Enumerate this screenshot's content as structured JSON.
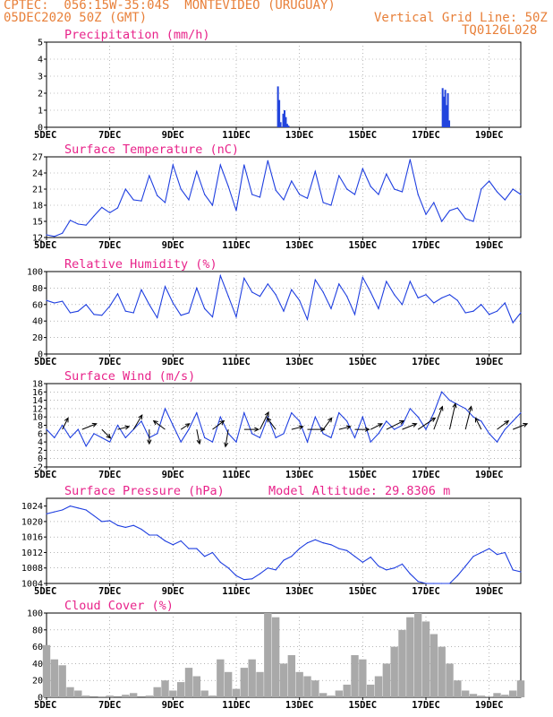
{
  "header": {
    "station": "CPTEC:  056:15W-35:04S  MONTEVIDEO (URUGUAY)",
    "run_date": "05DEC2020 50Z (GMT)",
    "grid_line": "Vertical Grid Line: 50Z",
    "code": "TQ0126L028"
  },
  "colors": {
    "line": "#1f3fe0",
    "bar": "#2244dd",
    "cloud": "#a9a9a9",
    "title": "#e8238a",
    "header": "#e8803a",
    "wind_arrow": "#000000"
  },
  "chart_data": [
    {
      "type": "bar",
      "title": "Precipitation (mm/h)",
      "ylim": [
        0,
        5
      ],
      "yticks": [
        0,
        1,
        2,
        3,
        4,
        5
      ],
      "xlim": [
        0,
        360
      ],
      "xtick_labels": [
        "5DEC",
        "7DEC",
        "9DEC",
        "11DEC",
        "13DEC",
        "15DEC",
        "17DEC",
        "19DEC"
      ],
      "x": [
        175,
        176,
        177,
        179,
        180,
        181,
        182,
        183,
        300,
        301,
        302,
        303,
        304,
        305
      ],
      "values": [
        2.4,
        1.6,
        0.3,
        0.8,
        1.0,
        0.6,
        0.2,
        0.1,
        2.3,
        1.8,
        2.2,
        1.3,
        2.0,
        0.4
      ]
    },
    {
      "type": "line",
      "title": "Surface Temperature (nC)",
      "ylim": [
        12,
        27
      ],
      "yticks": [
        12,
        15,
        18,
        21,
        24,
        27
      ],
      "xlim": [
        0,
        360
      ],
      "xtick_labels": [
        "5DEC",
        "7DEC",
        "9DEC",
        "11DEC",
        "13DEC",
        "15DEC",
        "17DEC",
        "19DEC"
      ],
      "x": [
        0,
        6,
        12,
        18,
        24,
        30,
        36,
        42,
        48,
        54,
        60,
        66,
        72,
        78,
        84,
        90,
        96,
        102,
        108,
        114,
        120,
        126,
        132,
        138,
        144,
        150,
        156,
        162,
        168,
        174,
        180,
        186,
        192,
        198,
        204,
        210,
        216,
        222,
        228,
        234,
        240,
        246,
        252,
        258,
        264,
        270,
        276,
        282,
        288,
        294,
        300,
        306,
        312,
        318,
        324,
        330,
        336,
        342,
        348,
        354,
        360
      ],
      "values": [
        12.5,
        12.2,
        12.8,
        15.2,
        14.5,
        14.3,
        16.0,
        17.6,
        16.6,
        17.5,
        21.0,
        19.0,
        18.8,
        23.5,
        19.8,
        18.5,
        25.5,
        21.0,
        19.0,
        24.3,
        20.0,
        18.0,
        25.5,
        21.5,
        17.0,
        25.5,
        20.0,
        19.5,
        26.3,
        20.8,
        19.0,
        22.5,
        20.0,
        19.3,
        24.3,
        18.5,
        18.0,
        23.5,
        21.0,
        20.0,
        24.8,
        21.5,
        20.0,
        23.8,
        21.0,
        20.5,
        26.5,
        20.0,
        16.3,
        18.5,
        15.0,
        17.0,
        17.5,
        15.5,
        15.0,
        21.0,
        22.5,
        20.5,
        19.0,
        21.0,
        20.0
      ]
    },
    {
      "type": "line",
      "title": "Relative Humidity (%)",
      "ylim": [
        0,
        100
      ],
      "yticks": [
        0,
        20,
        40,
        60,
        80,
        100
      ],
      "xlim": [
        0,
        360
      ],
      "xtick_labels": [
        "5DEC",
        "7DEC",
        "9DEC",
        "11DEC",
        "13DEC",
        "15DEC",
        "17DEC",
        "19DEC"
      ],
      "x": [
        0,
        6,
        12,
        18,
        24,
        30,
        36,
        42,
        48,
        54,
        60,
        66,
        72,
        78,
        84,
        90,
        96,
        102,
        108,
        114,
        120,
        126,
        132,
        138,
        144,
        150,
        156,
        162,
        168,
        174,
        180,
        186,
        192,
        198,
        204,
        210,
        216,
        222,
        228,
        234,
        240,
        246,
        252,
        258,
        264,
        270,
        276,
        282,
        288,
        294,
        300,
        306,
        312,
        318,
        324,
        330,
        336,
        342,
        348,
        354,
        360
      ],
      "values": [
        65,
        62,
        64,
        50,
        52,
        60,
        48,
        47,
        58,
        73,
        52,
        50,
        78,
        60,
        44,
        82,
        62,
        47,
        50,
        80,
        55,
        45,
        95,
        70,
        45,
        92,
        75,
        70,
        85,
        72,
        52,
        78,
        65,
        42,
        90,
        75,
        55,
        85,
        70,
        48,
        93,
        75,
        55,
        88,
        72,
        60,
        88,
        68,
        72,
        62,
        68,
        72,
        65,
        50,
        52,
        60,
        48,
        52,
        62,
        38,
        50
      ]
    },
    {
      "type": "line",
      "title": "Surface Wind (m/s)",
      "ylim": [
        -2,
        18
      ],
      "yticks": [
        -2,
        0,
        2,
        4,
        6,
        8,
        10,
        12,
        14,
        16,
        18
      ],
      "xlim": [
        0,
        360
      ],
      "xtick_labels": [
        "5DEC",
        "7DEC",
        "9DEC",
        "11DEC",
        "13DEC",
        "15DEC",
        "17DEC",
        "19DEC"
      ],
      "x": [
        0,
        6,
        12,
        18,
        24,
        30,
        36,
        42,
        48,
        54,
        60,
        66,
        72,
        78,
        84,
        90,
        96,
        102,
        108,
        114,
        120,
        126,
        132,
        138,
        144,
        150,
        156,
        162,
        168,
        174,
        180,
        186,
        192,
        198,
        204,
        210,
        216,
        222,
        228,
        234,
        240,
        246,
        252,
        258,
        264,
        270,
        276,
        282,
        288,
        294,
        300,
        306,
        312,
        318,
        324,
        330,
        336,
        342,
        348,
        354,
        360
      ],
      "values": [
        7,
        5,
        8,
        5,
        7,
        3,
        6,
        5,
        4,
        8,
        5,
        7,
        9,
        5,
        6,
        12,
        8,
        4,
        7,
        11,
        5,
        4,
        10,
        6,
        4,
        11,
        6,
        5,
        10,
        5,
        6,
        11,
        9,
        4,
        10,
        6,
        5,
        11,
        9,
        5,
        10,
        4,
        6,
        9,
        7,
        8,
        12,
        10,
        7,
        11,
        16,
        14,
        13,
        12,
        10,
        9,
        6,
        4,
        7,
        9,
        11
      ],
      "wind_vectors": [
        {
          "x": 12,
          "u": 2,
          "v": 4
        },
        {
          "x": 27,
          "u": 5,
          "v": 2
        },
        {
          "x": 42,
          "u": 3,
          "v": -3
        },
        {
          "x": 54,
          "u": 4,
          "v": 1
        },
        {
          "x": 66,
          "u": 3,
          "v": 5
        },
        {
          "x": 78,
          "u": 0,
          "v": -5
        },
        {
          "x": 90,
          "u": -4,
          "v": 3
        },
        {
          "x": 102,
          "u": 3,
          "v": 2
        },
        {
          "x": 114,
          "u": 1,
          "v": -5
        },
        {
          "x": 126,
          "u": 4,
          "v": 3
        },
        {
          "x": 138,
          "u": -1,
          "v": -6
        },
        {
          "x": 150,
          "u": 5,
          "v": 0
        },
        {
          "x": 162,
          "u": 3,
          "v": 6
        },
        {
          "x": 174,
          "u": -3,
          "v": 4
        },
        {
          "x": 186,
          "u": 4,
          "v": 1
        },
        {
          "x": 198,
          "u": 6,
          "v": 0
        },
        {
          "x": 210,
          "u": 3,
          "v": 4
        },
        {
          "x": 222,
          "u": 4,
          "v": 1
        },
        {
          "x": 234,
          "u": 5,
          "v": 0
        },
        {
          "x": 246,
          "u": 4,
          "v": 2
        },
        {
          "x": 258,
          "u": 6,
          "v": 3
        },
        {
          "x": 270,
          "u": 5,
          "v": 2
        },
        {
          "x": 282,
          "u": 6,
          "v": 4
        },
        {
          "x": 294,
          "u": 3,
          "v": 8
        },
        {
          "x": 306,
          "u": 2,
          "v": 9
        },
        {
          "x": 318,
          "u": 2,
          "v": 8
        },
        {
          "x": 330,
          "u": -2,
          "v": 4
        },
        {
          "x": 342,
          "u": 4,
          "v": 3
        },
        {
          "x": 354,
          "u": 5,
          "v": 2
        }
      ]
    },
    {
      "type": "line",
      "title": "Surface Pressure (hPa)",
      "annotation": "Model Altitude: 29.8306 m",
      "ylim": [
        1004,
        1026
      ],
      "yticks": [
        1004,
        1008,
        1012,
        1016,
        1020,
        1024
      ],
      "xlim": [
        0,
        360
      ],
      "xtick_labels": [
        "5DEC",
        "7DEC",
        "9DEC",
        "11DEC",
        "13DEC",
        "15DEC",
        "17DEC",
        "19DEC"
      ],
      "x": [
        0,
        6,
        12,
        18,
        24,
        30,
        36,
        42,
        48,
        54,
        60,
        66,
        72,
        78,
        84,
        90,
        96,
        102,
        108,
        114,
        120,
        126,
        132,
        138,
        144,
        150,
        156,
        162,
        168,
        174,
        180,
        186,
        192,
        198,
        204,
        210,
        216,
        222,
        228,
        234,
        240,
        246,
        252,
        258,
        264,
        270,
        276,
        282,
        288,
        294,
        300,
        306,
        312,
        318,
        324,
        330,
        336,
        342,
        348,
        354,
        360
      ],
      "values": [
        1022,
        1022.5,
        1023,
        1024,
        1023.5,
        1023,
        1021.5,
        1020,
        1020.2,
        1019,
        1018.5,
        1019,
        1018,
        1016.5,
        1016.5,
        1015,
        1014,
        1015,
        1013,
        1013,
        1011,
        1012,
        1009.5,
        1008,
        1006,
        1005,
        1005.2,
        1006.5,
        1008,
        1007.5,
        1010,
        1011,
        1013,
        1014.5,
        1015.3,
        1014.5,
        1014,
        1013,
        1012.5,
        1011,
        1009.5,
        1010.8,
        1008.5,
        1007.5,
        1008,
        1009,
        1006.5,
        1004.5,
        1003,
        1002.5,
        1003,
        1004,
        1006,
        1008.5,
        1011,
        1012,
        1013,
        1011.5,
        1012,
        1007.5,
        1007
      ]
    },
    {
      "type": "bar",
      "title": "Cloud Cover (%)",
      "ylim": [
        0,
        100
      ],
      "yticks": [
        0,
        20,
        40,
        60,
        80,
        100
      ],
      "xlim": [
        0,
        360
      ],
      "xtick_labels": [
        "5DEC",
        "7DEC",
        "9DEC",
        "11DEC",
        "13DEC",
        "15DEC",
        "17DEC",
        "19DEC"
      ],
      "x": [
        0,
        6,
        12,
        18,
        24,
        30,
        36,
        42,
        48,
        54,
        60,
        66,
        72,
        78,
        84,
        90,
        96,
        102,
        108,
        114,
        120,
        126,
        132,
        138,
        144,
        150,
        156,
        162,
        168,
        174,
        180,
        186,
        192,
        198,
        204,
        210,
        216,
        222,
        228,
        234,
        240,
        246,
        252,
        258,
        264,
        270,
        276,
        282,
        288,
        294,
        300,
        306,
        312,
        318,
        324,
        330,
        336,
        342,
        348,
        354,
        360
      ],
      "values": [
        62,
        45,
        38,
        12,
        8,
        2,
        0,
        1,
        2,
        0,
        3,
        5,
        0,
        2,
        12,
        20,
        8,
        18,
        35,
        25,
        8,
        2,
        45,
        30,
        10,
        35,
        45,
        30,
        100,
        95,
        40,
        50,
        30,
        25,
        20,
        5,
        2,
        8,
        15,
        50,
        45,
        15,
        25,
        40,
        60,
        80,
        95,
        100,
        90,
        75,
        60,
        40,
        20,
        8,
        4,
        2,
        1,
        5,
        3,
        8,
        20
      ]
    }
  ]
}
